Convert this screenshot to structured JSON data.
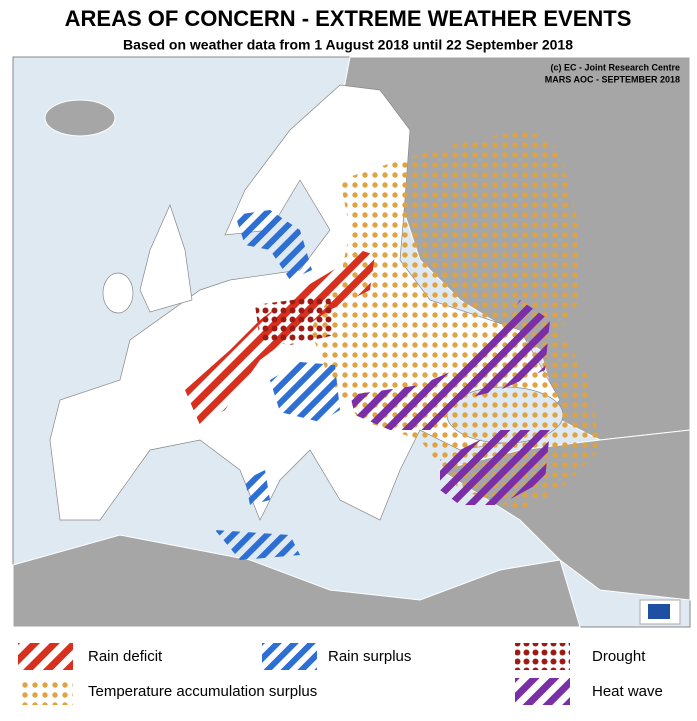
{
  "header": {
    "title": "AREAS OF CONCERN - EXTREME WEATHER EVENTS",
    "subtitle": "Based on weather data from 1 August 2018 until 22 September 2018"
  },
  "credit": {
    "lines": [
      "(c) EC - Joint Research Centre",
      "MARS AOC - SEPTEMBER 2018"
    ]
  },
  "legend": {
    "items": [
      "Rain deficit",
      "Rain surplus",
      "Drought",
      "Temperature accumulation surplus",
      "Heat wave"
    ]
  }
}
